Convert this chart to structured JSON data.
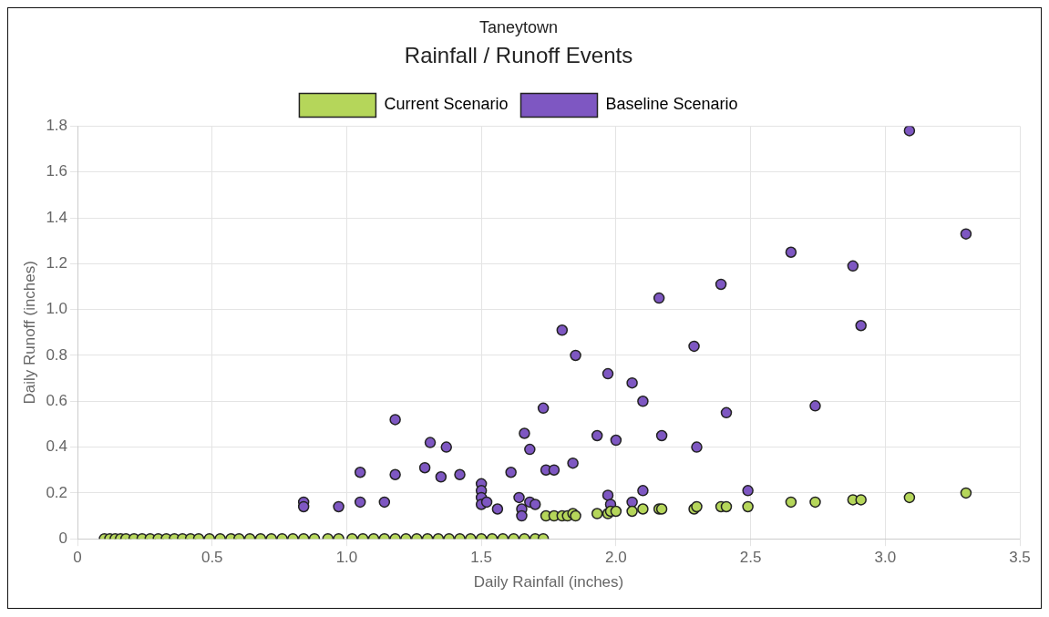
{
  "chart_data": {
    "type": "scatter",
    "title": "Rainfall / Runoff Events",
    "subtitle": "Taneytown",
    "xlabel": "Daily Rainfall (inches)",
    "ylabel": "Daily Runoff (inches)",
    "xlim": [
      0,
      3.5
    ],
    "xticks": [
      0,
      0.5,
      {
        "value": 1,
        "label": "1.0"
      },
      1.5,
      {
        "value": 2,
        "label": "2.0"
      },
      2.5,
      {
        "value": 3,
        "label": "3.0"
      },
      3.5
    ],
    "ylim": [
      0,
      1.8
    ],
    "yticks": [
      0,
      0.2,
      0.4,
      0.6,
      0.8,
      {
        "value": 1,
        "label": "1.0"
      },
      1.2,
      1.4,
      1.6,
      1.8
    ],
    "grid": true,
    "legend": "top",
    "marker": "circle",
    "series": [
      {
        "name": "Current Scenario",
        "color": "#b5d65a",
        "x": [
          0.1,
          0.12,
          0.14,
          0.16,
          0.18,
          0.21,
          0.24,
          0.27,
          0.3,
          0.33,
          0.36,
          0.39,
          0.42,
          0.45,
          0.49,
          0.53,
          0.57,
          0.6,
          0.64,
          0.68,
          0.72,
          0.76,
          0.8,
          0.84,
          0.88,
          0.93,
          0.97,
          1.02,
          1.06,
          1.1,
          1.14,
          1.18,
          1.22,
          1.26,
          1.3,
          1.34,
          1.38,
          1.42,
          1.46,
          1.5,
          1.54,
          1.58,
          1.62,
          1.66,
          1.7,
          1.73,
          1.74,
          1.77,
          1.8,
          1.82,
          1.84,
          1.85,
          1.93,
          1.97,
          1.98,
          2.0,
          2.06,
          2.1,
          2.16,
          2.17,
          2.29,
          2.3,
          2.39,
          2.41,
          2.49,
          2.65,
          2.74,
          2.88,
          2.91,
          3.09,
          3.3
        ],
        "values": [
          0,
          0,
          0,
          0,
          0,
          0,
          0,
          0,
          0,
          0,
          0,
          0,
          0,
          0,
          0,
          0,
          0,
          0,
          0,
          0,
          0,
          0,
          0,
          0,
          0,
          0,
          0,
          0,
          0,
          0,
          0,
          0,
          0,
          0,
          0,
          0,
          0,
          0,
          0,
          0,
          0,
          0,
          0,
          0,
          0,
          0,
          0.1,
          0.1,
          0.1,
          0.1,
          0.11,
          0.1,
          0.11,
          0.11,
          0.12,
          0.12,
          0.12,
          0.13,
          0.13,
          0.13,
          0.13,
          0.14,
          0.14,
          0.14,
          0.14,
          0.16,
          0.16,
          0.17,
          0.17,
          0.18,
          0.2
        ]
      },
      {
        "name": "Baseline Scenario",
        "color": "#7e57c2",
        "x": [
          0.84,
          0.84,
          0.97,
          1.05,
          1.05,
          1.14,
          1.18,
          1.18,
          1.29,
          1.31,
          1.35,
          1.37,
          1.42,
          1.5,
          1.5,
          1.5,
          1.5,
          1.52,
          1.56,
          1.61,
          1.64,
          1.65,
          1.65,
          1.66,
          1.68,
          1.68,
          1.7,
          1.73,
          1.74,
          1.77,
          1.8,
          1.84,
          1.85,
          1.93,
          1.97,
          1.97,
          2.0,
          1.98,
          2.06,
          2.06,
          2.1,
          2.1,
          2.16,
          2.17,
          2.29,
          2.3,
          2.39,
          2.41,
          2.49,
          2.65,
          2.74,
          2.88,
          2.91,
          3.09,
          3.3
        ],
        "values": [
          0.16,
          0.14,
          0.14,
          0.29,
          0.16,
          0.16,
          0.52,
          0.28,
          0.31,
          0.42,
          0.27,
          0.4,
          0.28,
          0.24,
          0.21,
          0.18,
          0.15,
          0.16,
          0.13,
          0.29,
          0.18,
          0.13,
          0.1,
          0.46,
          0.39,
          0.16,
          0.15,
          0.57,
          0.3,
          0.3,
          0.91,
          0.33,
          0.8,
          0.45,
          0.72,
          0.19,
          0.43,
          0.15,
          0.68,
          0.16,
          0.6,
          0.21,
          1.05,
          0.45,
          0.84,
          0.4,
          1.11,
          0.55,
          0.21,
          1.25,
          0.58,
          1.19,
          0.93,
          1.78,
          1.33
        ]
      }
    ]
  }
}
